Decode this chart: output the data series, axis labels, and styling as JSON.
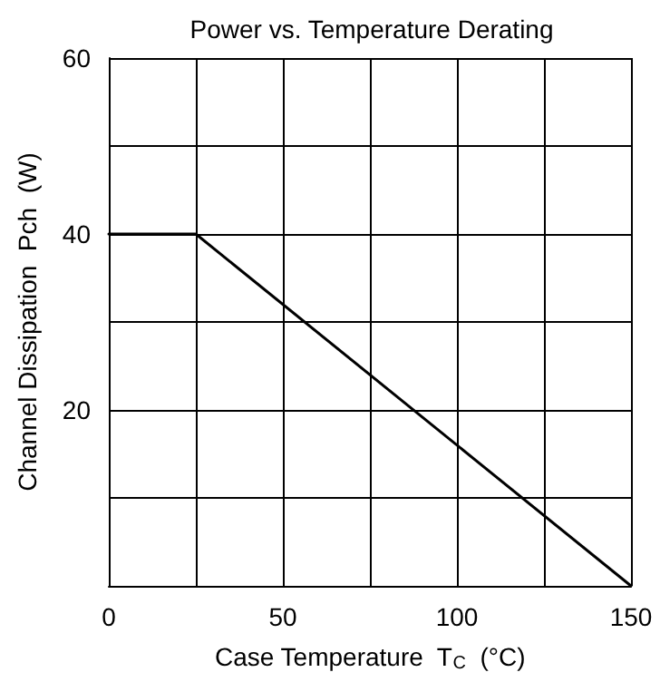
{
  "chart_data": {
    "type": "line",
    "title": "Power vs. Temperature Derating",
    "xlabel": "Case Temperature  T$_{C}$  (°C)",
    "ylabel": "Channel Dissipation  Pch  (W)",
    "x": [
      0,
      25,
      150
    ],
    "series": [
      {
        "color": "#000000",
        "values": [
          40,
          40,
          0
        ]
      }
    ],
    "xlim": [
      0,
      150
    ],
    "xticks": [
      0,
      {
        "value": 25,
        "label": null
      },
      50,
      {
        "value": 75,
        "label": null
      },
      100,
      {
        "value": 125,
        "label": null
      },
      150
    ],
    "ylim": [
      0,
      60
    ],
    "yticks": [
      {
        "value": 0,
        "label": null
      },
      {
        "value": 10,
        "label": null
      },
      20,
      {
        "value": 30,
        "label": null
      },
      40,
      {
        "value": 50,
        "label": null
      },
      60
    ],
    "grid": true,
    "marker": "none",
    "line_style": "solid"
  }
}
